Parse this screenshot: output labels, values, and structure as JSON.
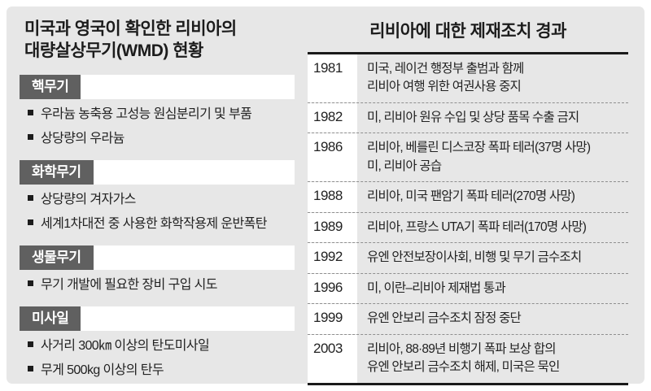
{
  "colors": {
    "panel_background": "#e7e7e7",
    "section_label_background": "#606060",
    "section_label_text": "#ffffff",
    "table_rule": "#1a1a1a",
    "dashed_divider": "#8f8f8f",
    "year_column_background": "#ffffff"
  },
  "left_panel": {
    "title_line1": "미국과 영국이 확인한 리비아의",
    "title_line2": "대량살상무기(WMD) 현황",
    "sections": [
      {
        "label": "핵무기",
        "items": [
          "우라늄 농축용 고성능 원심분리기 및 부품",
          "상당량의 우라늄"
        ]
      },
      {
        "label": "화학무기",
        "items": [
          "상당량의 겨자가스",
          "세계1차대전 중 사용한 화학작용제 운반폭탄"
        ]
      },
      {
        "label": "생물무기",
        "items": [
          "무기 개발에 필요한 장비 구입 시도"
        ]
      },
      {
        "label": "미사일",
        "items": [
          "사거리 300㎞ 이상의 탄도미사일",
          "무게 500kg 이상의 탄두"
        ]
      }
    ]
  },
  "right_panel": {
    "title": "리비아에 대한 제재조치 경과",
    "timeline": [
      {
        "year": "1981",
        "event_lines": [
          "미국, 레이건 행정부 출범과 함께",
          "리비아 여행 위한 여권사용 중지"
        ]
      },
      {
        "year": "1982",
        "event_lines": [
          "미, 리비아 원유 수입 및 상당 품목 수출 금지"
        ]
      },
      {
        "year": "1986",
        "event_lines": [
          "리비아, 베를린 디스코장 폭파 테러(37명 사망)",
          "미, 리비아 공습"
        ]
      },
      {
        "year": "1988",
        "event_lines": [
          "리비아, 미국 팬암기 폭파 테러(270명 사망)"
        ]
      },
      {
        "year": "1989",
        "event_lines": [
          "리비아, 프랑스 UTA기 폭파 테러(170명 사망)"
        ]
      },
      {
        "year": "1992",
        "event_lines": [
          "유엔 안전보장이사회, 비행 및 무기 금수조치"
        ]
      },
      {
        "year": "1996",
        "event_lines": [
          "미, 이란–리비아 제재법 통과"
        ]
      },
      {
        "year": "1999",
        "event_lines": [
          "유엔 안보리 금수조치 잠정 중단"
        ]
      },
      {
        "year": "2003",
        "event_lines": [
          "리비아, 88·89년 비행기 폭파 보상 합의",
          "유엔 안보리 금수조치 해제, 미국은 묵인"
        ]
      }
    ]
  }
}
